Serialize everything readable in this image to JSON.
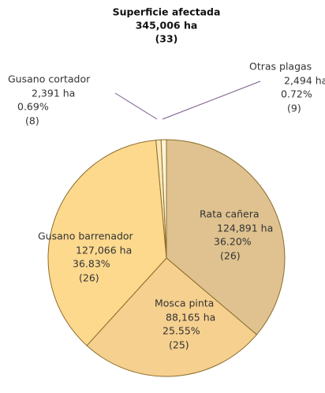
{
  "chart_data": {
    "type": "pie",
    "title": "Superficie afectada",
    "subtitle": [
      "345,006 ha",
      "(33)"
    ],
    "categories": [
      "Rata cañera",
      "Mosca pinta",
      "Gusano barrenador",
      "Gusano cortador",
      "Otras plagas"
    ],
    "values": [
      124891,
      88165,
      127066,
      2391,
      2494
    ],
    "value_labels": [
      "124,891 ha",
      "88,165 ha",
      "127,066 ha",
      "2,391 ha",
      "2,494 ha"
    ],
    "percent_labels": [
      "36.20%",
      "25.55%",
      "36.83%",
      "0.69%",
      "0.72%"
    ],
    "count_labels": [
      "(26)",
      "(25)",
      "(26)",
      "(8)",
      "(9)"
    ],
    "colors": [
      "#dfc28f",
      "#f6d08f",
      "#fdd98e",
      "#fde8b4",
      "#fff4d6"
    ]
  }
}
